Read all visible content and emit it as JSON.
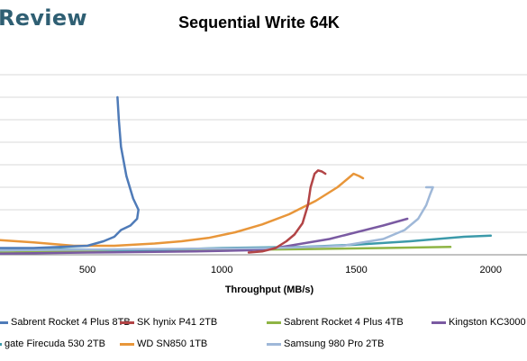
{
  "brand": {
    "text": "Review"
  },
  "chart_data": {
    "type": "line",
    "title": "Sequential Write 64K",
    "xlabel": "Throughput (MB/s)",
    "ylabel": "",
    "xlim": [
      175,
      2175
    ],
    "ylim": [
      0,
      8
    ],
    "x_ticks": [
      500,
      1000,
      1500,
      2000
    ],
    "grid": true,
    "legend_position": "bottom",
    "series": [
      {
        "name": "Sabrent Rocket 4 Plus 8TB",
        "color": "#4f7bb8",
        "points": [
          [
            175,
            0.3
          ],
          [
            300,
            0.3
          ],
          [
            400,
            0.35
          ],
          [
            500,
            0.4
          ],
          [
            560,
            0.6
          ],
          [
            600,
            0.8
          ],
          [
            625,
            1.1
          ],
          [
            660,
            1.3
          ],
          [
            685,
            1.6
          ],
          [
            690,
            2.0
          ],
          [
            670,
            2.5
          ],
          [
            645,
            3.5
          ],
          [
            625,
            4.8
          ],
          [
            617,
            6.0
          ],
          [
            612,
            7.0
          ]
        ]
      },
      {
        "name": "SK hynix P41 2TB",
        "color": "#b24446",
        "points": [
          [
            1100,
            0.1
          ],
          [
            1150,
            0.15
          ],
          [
            1200,
            0.3
          ],
          [
            1240,
            0.6
          ],
          [
            1270,
            0.9
          ],
          [
            1300,
            1.4
          ],
          [
            1320,
            2.2
          ],
          [
            1330,
            3.0
          ],
          [
            1345,
            3.6
          ],
          [
            1358,
            3.75
          ],
          [
            1372,
            3.7
          ],
          [
            1385,
            3.6
          ]
        ]
      },
      {
        "name": "Sabrent Rocket 4 Plus 4TB",
        "color": "#8eb444",
        "points": [
          [
            175,
            0.1
          ],
          [
            500,
            0.15
          ],
          [
            900,
            0.2
          ],
          [
            1300,
            0.25
          ],
          [
            1600,
            0.3
          ],
          [
            1850,
            0.35
          ]
        ]
      },
      {
        "name": "Kingston KC3000",
        "color": "#7a5aa2",
        "points": [
          [
            175,
            0.05
          ],
          [
            500,
            0.1
          ],
          [
            900,
            0.15
          ],
          [
            1100,
            0.2
          ],
          [
            1200,
            0.3
          ],
          [
            1300,
            0.5
          ],
          [
            1400,
            0.7
          ],
          [
            1500,
            1.0
          ],
          [
            1600,
            1.3
          ],
          [
            1690,
            1.6
          ]
        ]
      },
      {
        "name": "gate Firecuda 530 2TB",
        "color": "#3c9aaa",
        "points": [
          [
            175,
            0.2
          ],
          [
            400,
            0.25
          ],
          [
            700,
            0.2
          ],
          [
            1000,
            0.3
          ],
          [
            1300,
            0.35
          ],
          [
            1500,
            0.45
          ],
          [
            1700,
            0.6
          ],
          [
            1900,
            0.8
          ],
          [
            2000,
            0.85
          ]
        ]
      },
      {
        "name": "WD SN850 1TB",
        "color": "#e8963a",
        "points": [
          [
            175,
            0.65
          ],
          [
            300,
            0.55
          ],
          [
            450,
            0.4
          ],
          [
            600,
            0.4
          ],
          [
            750,
            0.5
          ],
          [
            850,
            0.6
          ],
          [
            950,
            0.75
          ],
          [
            1050,
            1.0
          ],
          [
            1150,
            1.35
          ],
          [
            1250,
            1.8
          ],
          [
            1350,
            2.4
          ],
          [
            1430,
            3.0
          ],
          [
            1470,
            3.4
          ],
          [
            1490,
            3.6
          ],
          [
            1510,
            3.5
          ],
          [
            1525,
            3.4
          ]
        ]
      },
      {
        "name": "Samsung 980 Pro 2TB",
        "color": "#9fb8d8",
        "points": [
          [
            175,
            0.2
          ],
          [
            700,
            0.25
          ],
          [
            1200,
            0.3
          ],
          [
            1450,
            0.4
          ],
          [
            1600,
            0.7
          ],
          [
            1680,
            1.1
          ],
          [
            1730,
            1.6
          ],
          [
            1760,
            2.2
          ],
          [
            1775,
            2.7
          ],
          [
            1785,
            3.0
          ],
          [
            1760,
            3.0
          ]
        ]
      }
    ]
  }
}
